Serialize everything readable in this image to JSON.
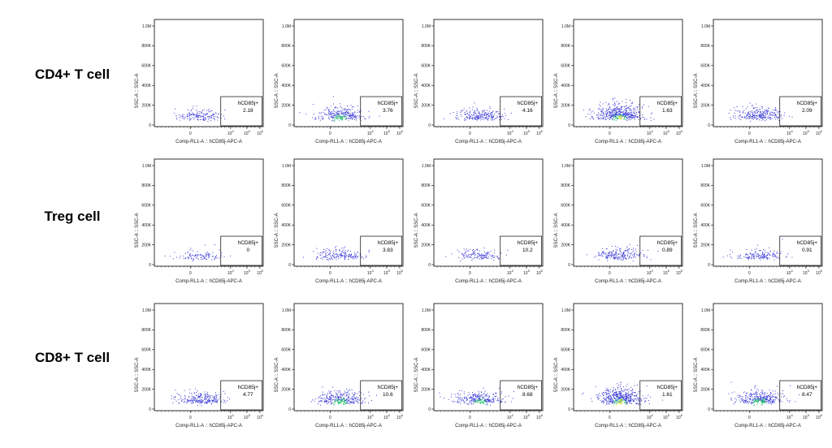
{
  "chart_data": {
    "type": "scatter",
    "description_free": true,
    "row_labels": [
      "CD4+ T cell",
      "Treg cell",
      "CD8+ T cell"
    ],
    "xlabel": "Comp-RL1-A :: hCD85j-APC-A",
    "ylabel": "SSC-A :: SSC-A",
    "xscale": "biexponential",
    "x_ticks": [
      "0",
      "10",
      "10",
      "10"
    ],
    "x_tick_exponents": [
      "",
      "4",
      "5",
      "6"
    ],
    "y_ticks": [
      "0",
      "200K",
      "400K",
      "600K",
      "800K",
      "1.0M"
    ],
    "ylim": [
      0,
      1000000
    ],
    "gate_name": "hCD85j+",
    "panels": [
      [
        {
          "gate_value": "2.18",
          "density": 0.25
        },
        {
          "gate_value": "3.76",
          "density": 0.55
        },
        {
          "gate_value": "4.16",
          "density": 0.4
        },
        {
          "gate_value": "1.63",
          "density": 1.0
        },
        {
          "gate_value": "2.09",
          "density": 0.5
        }
      ],
      [
        {
          "gate_value": "0",
          "density": 0.1
        },
        {
          "gate_value": "3.83",
          "density": 0.3
        },
        {
          "gate_value": "10.2",
          "density": 0.2
        },
        {
          "gate_value": "0.89",
          "density": 0.35
        },
        {
          "gate_value": "0.91",
          "density": 0.25
        }
      ],
      [
        {
          "gate_value": "4.77",
          "density": 0.45
        },
        {
          "gate_value": "10.6",
          "density": 0.6
        },
        {
          "gate_value": "8.68",
          "density": 0.55
        },
        {
          "gate_value": "1.61",
          "density": 1.0
        },
        {
          "gate_value": "8.47",
          "density": 0.7
        }
      ]
    ],
    "colors": {
      "dot": "#3b3bd9",
      "dense": "#1fbf6a",
      "densest": "#e8e020",
      "frame": "#000000"
    }
  }
}
